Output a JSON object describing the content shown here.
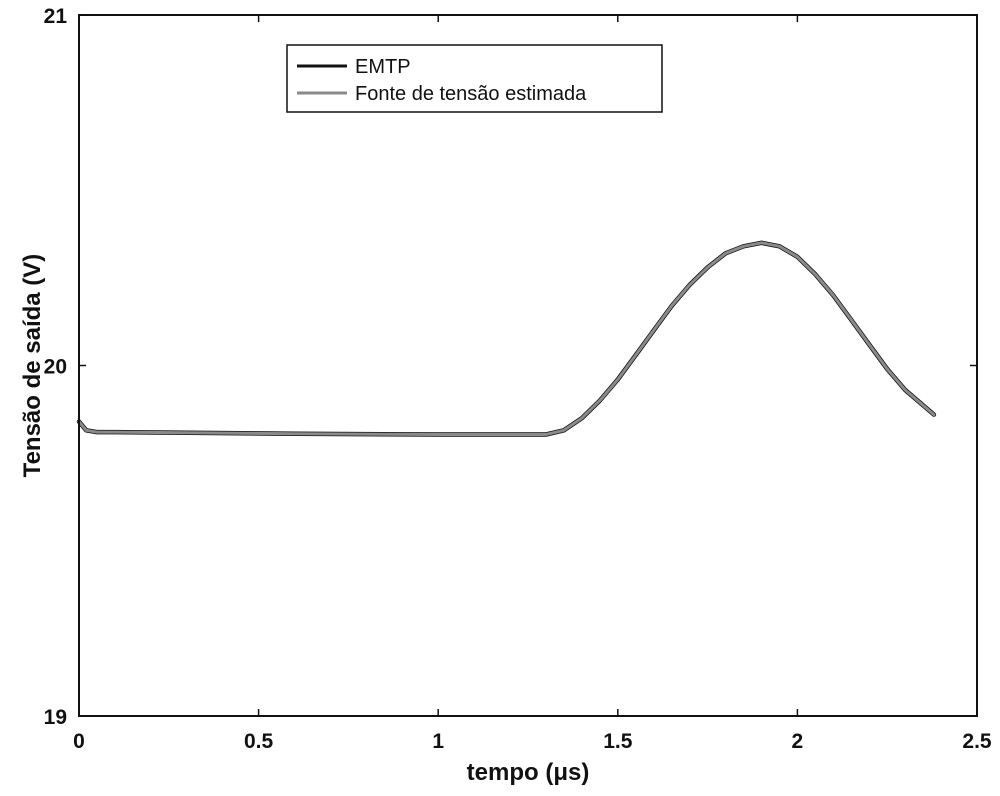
{
  "chart_data": {
    "type": "line",
    "title": "",
    "xlabel": "tempo (μs)",
    "ylabel": "Tensão de saída (V)",
    "xlim": [
      0,
      2.5
    ],
    "ylim": [
      19,
      21
    ],
    "xticks": [
      0,
      0.5,
      1,
      1.5,
      2,
      2.5
    ],
    "xtick_labels": [
      "0",
      "0.5",
      "1",
      "1.5",
      "2",
      "2.5"
    ],
    "yticks": [
      19,
      20,
      21
    ],
    "ytick_labels": [
      "19",
      "20",
      "21"
    ],
    "grid": false,
    "legend_position": "top-center",
    "series": [
      {
        "name": "EMTP",
        "color": "#111111",
        "x": [
          0,
          0.02,
          0.05,
          0.1,
          0.3,
          0.6,
          1.0,
          1.3,
          1.35,
          1.4,
          1.45,
          1.5,
          1.55,
          1.6,
          1.65,
          1.7,
          1.75,
          1.8,
          1.85,
          1.9,
          1.95,
          2.0,
          2.05,
          2.1,
          2.15,
          2.2,
          2.25,
          2.3,
          2.38
        ],
        "y": [
          19.84,
          19.815,
          19.81,
          19.81,
          19.808,
          19.805,
          19.803,
          19.803,
          19.815,
          19.85,
          19.9,
          19.96,
          20.03,
          20.1,
          20.17,
          20.23,
          20.28,
          20.32,
          20.34,
          20.35,
          20.34,
          20.31,
          20.26,
          20.2,
          20.13,
          20.06,
          19.99,
          19.93,
          19.86
        ]
      },
      {
        "name": "Fonte de tensão estimada",
        "color": "#8a8a8a",
        "x": [
          0,
          0.02,
          0.05,
          0.1,
          0.3,
          0.6,
          1.0,
          1.3,
          1.35,
          1.4,
          1.45,
          1.5,
          1.55,
          1.6,
          1.65,
          1.7,
          1.75,
          1.8,
          1.85,
          1.9,
          1.95,
          2.0,
          2.05,
          2.1,
          2.15,
          2.2,
          2.25,
          2.3,
          2.38
        ],
        "y": [
          19.84,
          19.815,
          19.81,
          19.81,
          19.808,
          19.805,
          19.803,
          19.803,
          19.815,
          19.85,
          19.9,
          19.96,
          20.03,
          20.1,
          20.17,
          20.23,
          20.28,
          20.32,
          20.34,
          20.35,
          20.34,
          20.31,
          20.26,
          20.2,
          20.13,
          20.06,
          19.99,
          19.93,
          19.86
        ]
      }
    ]
  }
}
